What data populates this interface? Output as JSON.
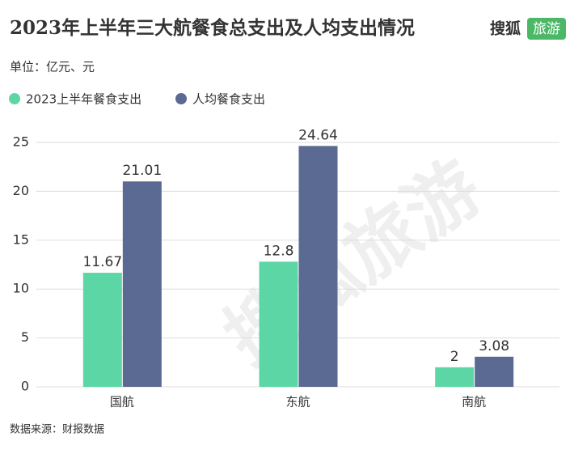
{
  "chart_data": {
    "type": "bar",
    "title": "2023年上半年三大航餐食总支出及人均支出情况",
    "logo": {
      "brand": "搜狐",
      "channel": "旅游"
    },
    "subtitle": "单位：亿元、元",
    "source": "数据来源：财报数据",
    "watermark": "搜狐旅游",
    "categories": [
      "国航",
      "东航",
      "南航"
    ],
    "series": [
      {
        "name": "2023上半年餐食支出",
        "color": "#5dd6a6",
        "values": [
          11.67,
          12.8,
          2
        ]
      },
      {
        "name": "人均餐食支出",
        "color": "#5a6a93",
        "values": [
          21.01,
          24.64,
          3.08
        ]
      }
    ],
    "ylim": [
      0,
      25
    ],
    "yticks": [
      0,
      5,
      10,
      15,
      20,
      25
    ],
    "grid": true,
    "legend": "top-left"
  }
}
